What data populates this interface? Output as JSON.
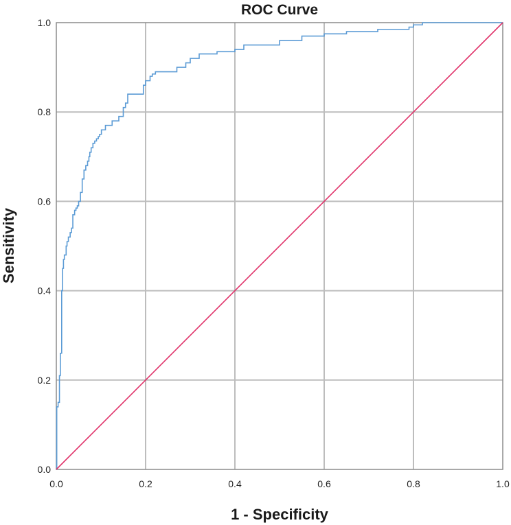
{
  "chart_data": {
    "type": "line",
    "title": "ROC Curve",
    "xlabel": "1 - Specificity",
    "ylabel": "Sensitivity",
    "xlim": [
      0,
      1
    ],
    "ylim": [
      0,
      1
    ],
    "x_ticks": [
      "0.0",
      "0.2",
      "0.4",
      "0.6",
      "0.8",
      "1.0"
    ],
    "y_ticks": [
      "0.0",
      "0.2",
      "0.4",
      "0.6",
      "0.8",
      "1.0"
    ],
    "grid": true,
    "series": [
      {
        "color": "#5b9bd5",
        "step": true,
        "x": [
          0,
          0.001,
          0.004,
          0.007,
          0.009,
          0.012,
          0.014,
          0.016,
          0.018,
          0.022,
          0.024,
          0.027,
          0.031,
          0.034,
          0.037,
          0.041,
          0.044,
          0.047,
          0.05,
          0.054,
          0.058,
          0.062,
          0.066,
          0.07,
          0.073,
          0.075,
          0.078,
          0.082,
          0.086,
          0.09,
          0.094,
          0.097,
          0.101,
          0.11,
          0.125,
          0.14,
          0.15,
          0.155,
          0.16,
          0.17,
          0.175,
          0.19,
          0.195,
          0.2,
          0.21,
          0.215,
          0.222,
          0.24,
          0.27,
          0.29,
          0.3,
          0.32,
          0.36,
          0.4,
          0.42,
          0.48,
          0.5,
          0.55,
          0.6,
          0.65,
          0.72,
          0.79,
          0.8,
          0.82,
          1.0
        ],
        "y": [
          0,
          0.14,
          0.15,
          0.21,
          0.26,
          0.4,
          0.45,
          0.47,
          0.48,
          0.5,
          0.51,
          0.52,
          0.53,
          0.54,
          0.57,
          0.58,
          0.585,
          0.59,
          0.6,
          0.62,
          0.65,
          0.67,
          0.68,
          0.69,
          0.7,
          0.71,
          0.72,
          0.73,
          0.735,
          0.74,
          0.745,
          0.75,
          0.76,
          0.77,
          0.78,
          0.79,
          0.81,
          0.82,
          0.84,
          0.84,
          0.84,
          0.84,
          0.86,
          0.87,
          0.88,
          0.885,
          0.89,
          0.89,
          0.9,
          0.91,
          0.92,
          0.93,
          0.935,
          0.94,
          0.95,
          0.95,
          0.96,
          0.97,
          0.975,
          0.98,
          0.985,
          0.99,
          0.995,
          1.0,
          1.0
        ]
      },
      {
        "color": "#e0336a",
        "step": false,
        "x": [
          0,
          1
        ],
        "y": [
          0,
          1
        ]
      }
    ]
  }
}
